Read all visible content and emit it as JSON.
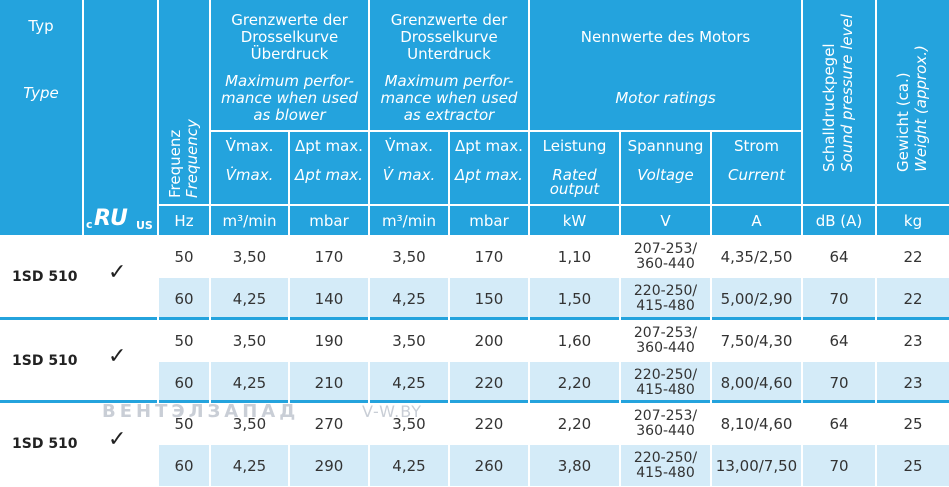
{
  "header": {
    "typ_de": "Typ",
    "typ_en": "Type",
    "cert_c": "c",
    "cert_ru": "RU",
    "cert_us": "US",
    "frequency_de": "Frequenz",
    "frequency_en": "Frequency",
    "blower": {
      "de_l1": "Grenzwerte der",
      "de_l2": "Drosselkurve",
      "de_l3": "Überdruck",
      "en_l1": "Maximum perfor-",
      "en_l2": "mance when used",
      "en_l3": "as blower"
    },
    "extractor": {
      "de_l1": "Grenzwerte der",
      "de_l2": "Drosselkurve",
      "de_l3": "Unterdruck",
      "en_l1": "Maximum perfor-",
      "en_l2": "mance when used",
      "en_l3": "as extractor"
    },
    "motor": {
      "de": "Nennwerte des Motors",
      "en": "Motor ratings"
    },
    "vmax": "V̇max.",
    "vmax_it": "V̇max.",
    "vmax2": "V̇max.",
    "vmax2_it": "V̇ max.",
    "dpt": "Δpt max.",
    "dpt_it": "Δpt max.",
    "leistung": "Leistung",
    "rated_l1": "Rated",
    "rated_l2": "output",
    "spannung": "Spannung",
    "voltage": "Voltage",
    "strom": "Strom",
    "current": "Current",
    "sound_de": "Schalldruckpegel",
    "sound_en": "Sound pressure level",
    "weight_de": "Gewicht (ca.)",
    "weight_en": "Weight (approx.)"
  },
  "units": [
    "Hz",
    "m³/min",
    "mbar",
    "m³/min",
    "mbar",
    "kW",
    "V",
    "A",
    "dB (A)",
    "kg"
  ],
  "rows": [
    {
      "type": "1SD 510",
      "check": "✓",
      "r": [
        [
          "50",
          "3,50",
          "170",
          "3,50",
          "170",
          "1,10",
          "207-253/",
          "360-440",
          "4,35/2,50",
          "64",
          "22"
        ],
        [
          "60",
          "4,25",
          "140",
          "4,25",
          "150",
          "1,50",
          "220-250/",
          "415-480",
          "5,00/2,90",
          "70",
          "22"
        ]
      ]
    },
    {
      "type": "1SD 510",
      "check": "✓",
      "r": [
        [
          "50",
          "3,50",
          "190",
          "3,50",
          "200",
          "1,60",
          "207-253/",
          "360-440",
          "7,50/4,30",
          "64",
          "23"
        ],
        [
          "60",
          "4,25",
          "210",
          "4,25",
          "220",
          "2,20",
          "220-250/",
          "415-480",
          "8,00/4,60",
          "70",
          "23"
        ]
      ]
    },
    {
      "type": "1SD 510",
      "check": "✓",
      "r": [
        [
          "50",
          "3,50",
          "270",
          "3,50",
          "220",
          "2,20",
          "207-253/",
          "360-440",
          "8,10/4,60",
          "64",
          "25"
        ],
        [
          "60",
          "4,25",
          "290",
          "4,25",
          "260",
          "3,80",
          "220-250/",
          "415-480",
          "13,00/7,50",
          "70",
          "25"
        ]
      ]
    }
  ],
  "watermark": {
    "brand": "ВЕНТЭЛЗАПАД",
    "site": "V-W.BY"
  },
  "colors": {
    "header": "#24a3dd",
    "band": "#d4ebf8"
  }
}
